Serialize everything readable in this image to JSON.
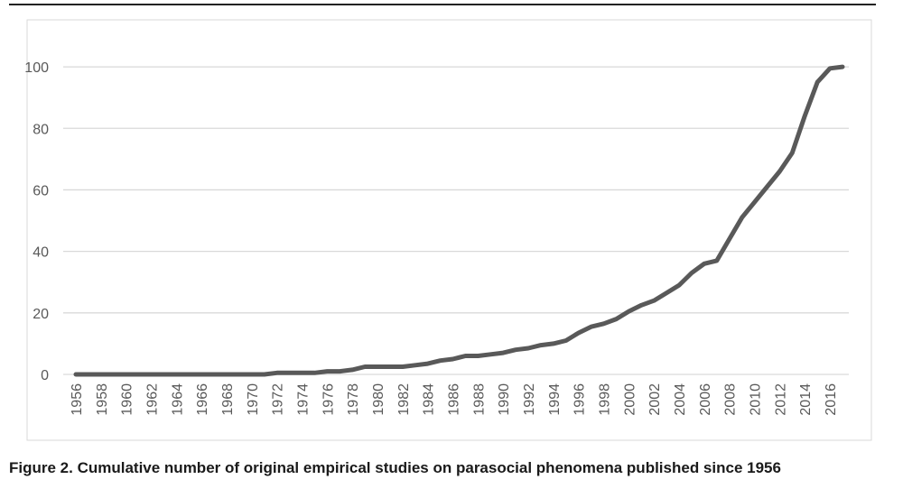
{
  "chart_data": {
    "type": "line",
    "caption": "Figure 2. Cumulative number of original empirical studies on parasocial phenomena published since 1956",
    "x": [
      1956,
      1957,
      1958,
      1959,
      1960,
      1961,
      1962,
      1963,
      1964,
      1965,
      1966,
      1967,
      1968,
      1969,
      1970,
      1971,
      1972,
      1973,
      1974,
      1975,
      1976,
      1977,
      1978,
      1979,
      1980,
      1981,
      1982,
      1983,
      1984,
      1985,
      1986,
      1987,
      1988,
      1989,
      1990,
      1991,
      1992,
      1993,
      1994,
      1995,
      1996,
      1997,
      1998,
      1999,
      2000,
      2001,
      2002,
      2003,
      2004,
      2005,
      2006,
      2007,
      2008,
      2009,
      2010,
      2011,
      2012,
      2013,
      2014,
      2015,
      2016,
      2017
    ],
    "values": [
      0,
      0,
      0,
      0,
      0,
      0,
      0,
      0,
      0,
      0,
      0,
      0,
      0,
      0,
      0,
      0,
      0.5,
      0.5,
      0.5,
      0.5,
      1,
      1,
      1.5,
      2.5,
      2.5,
      2.5,
      2.5,
      3,
      3.5,
      4.5,
      5,
      6,
      6,
      6.5,
      7,
      8,
      8.5,
      9.5,
      10,
      11,
      13.5,
      15.5,
      16.5,
      18,
      20.5,
      22.5,
      24,
      26.5,
      29,
      33,
      36,
      37,
      44,
      51,
      56,
      61,
      66,
      72,
      84,
      95,
      99.5,
      100
    ],
    "color": "#595959",
    "xlim": [
      1956,
      2017
    ],
    "xticks": [
      1956,
      1958,
      1960,
      1962,
      1964,
      1966,
      1968,
      1970,
      1972,
      1974,
      1976,
      1978,
      1980,
      1982,
      1984,
      1986,
      1988,
      1990,
      1992,
      1994,
      1996,
      1998,
      2000,
      2002,
      2004,
      2006,
      2008,
      2010,
      2012,
      2014,
      2016
    ],
    "ylim": [
      0,
      110
    ],
    "yticks": [
      0,
      20,
      40,
      60,
      80,
      100
    ],
    "grid": true
  }
}
